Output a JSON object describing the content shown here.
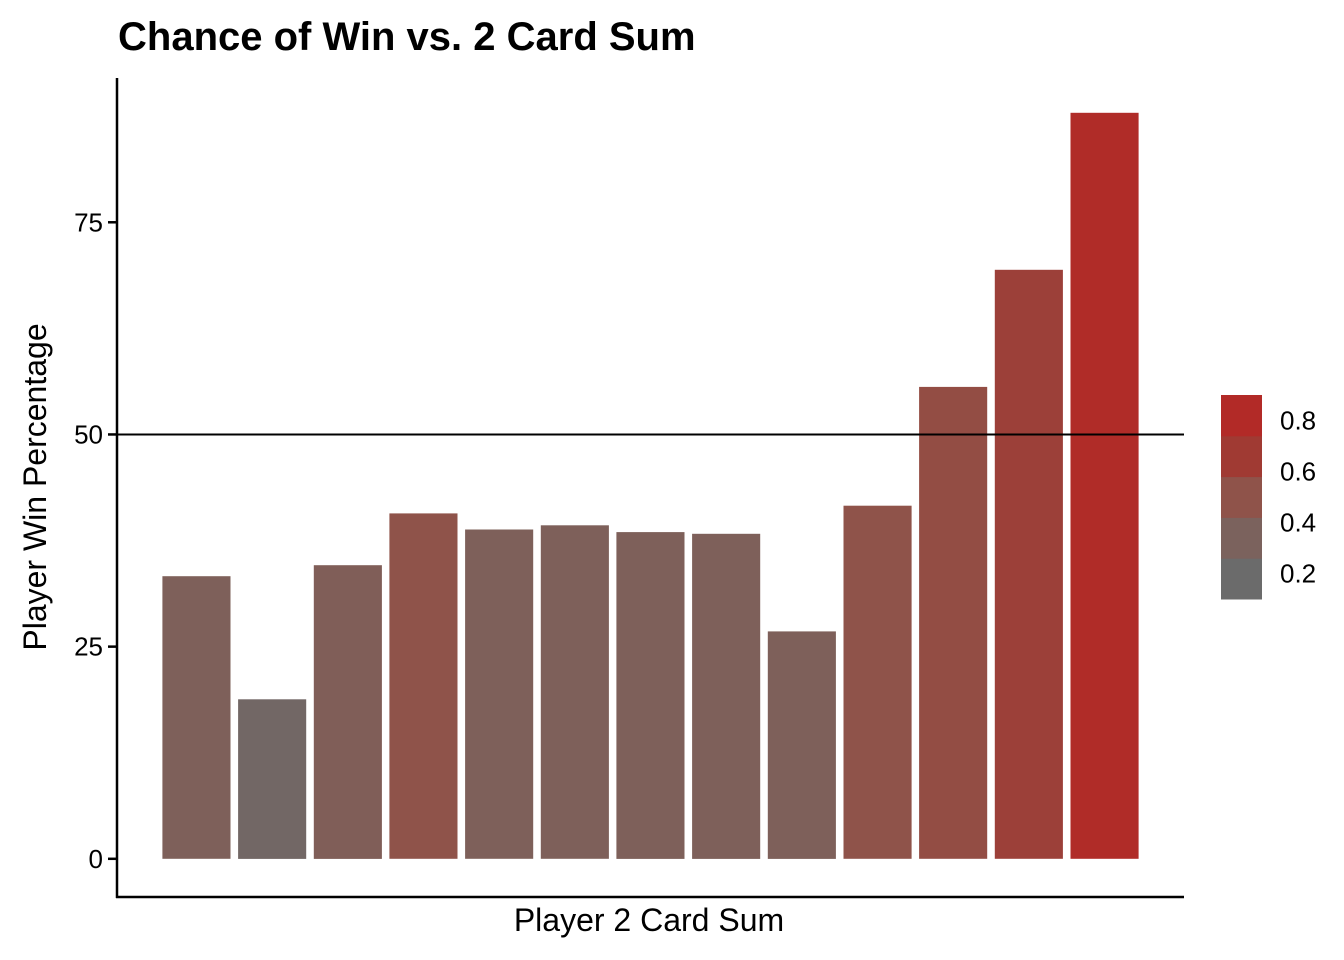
{
  "chart_data": {
    "type": "bar",
    "title": "Chance of Win vs. 2 Card Sum",
    "xlabel": "Player 2 Card Sum",
    "ylabel": "Player Win Percentage",
    "ylim": [
      -4.5,
      92
    ],
    "yticks": [
      0,
      25,
      50,
      75
    ],
    "ytick_labels": [
      "0",
      "25",
      "50",
      "75"
    ],
    "x_tick_labels_shown": false,
    "grid": false,
    "reference_line": {
      "y": 50,
      "color": "#000000"
    },
    "values": [
      33.3,
      18.8,
      34.6,
      40.7,
      38.8,
      39.3,
      38.5,
      38.3,
      26.8,
      41.6,
      55.6,
      69.4,
      87.9
    ],
    "fill_values": [
      0.33,
      0.19,
      0.35,
      0.5,
      0.33,
      0.33,
      0.33,
      0.33,
      0.33,
      0.5,
      0.55,
      0.65,
      0.88
    ],
    "legend": {
      "placement": "right",
      "range": [
        0.1,
        0.9
      ],
      "ticks": [
        0.2,
        0.4,
        0.6,
        0.8
      ],
      "tick_labels": [
        "0.2",
        "0.4",
        "0.6",
        "0.8"
      ],
      "colors": [
        "#6b6b6b",
        "#7b625d",
        "#8f534a",
        "#a03a33",
        "#b22a27"
      ]
    }
  }
}
